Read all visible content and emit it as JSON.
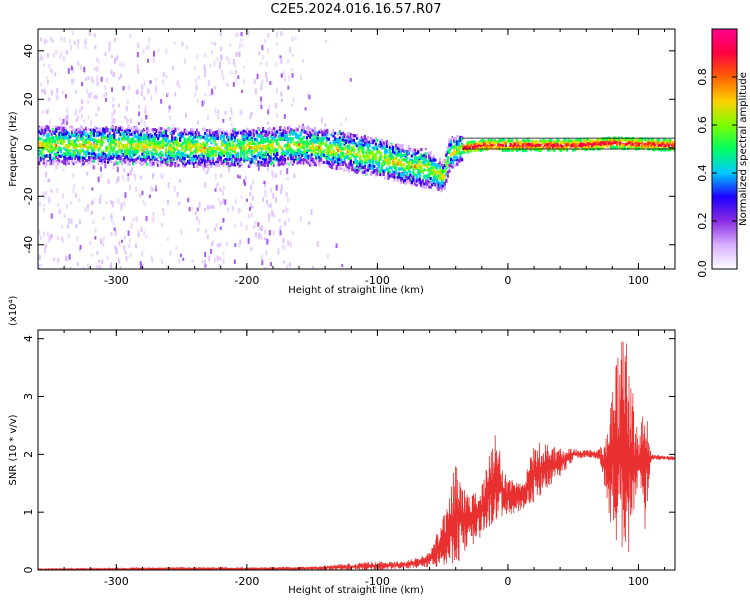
{
  "title": "C2E5.2024.016.16.57.R07",
  "chart_data": [
    {
      "type": "heatmap",
      "xlabel": "Height of straight line (km)",
      "ylabel": "Frequency (Hz)",
      "xlim": [
        -360,
        128
      ],
      "ylim": [
        -50,
        49
      ],
      "xticks": [
        -300,
        -200,
        -100,
        0,
        100
      ],
      "yticks": [
        -40,
        -20,
        0,
        20,
        40
      ],
      "colorbar": {
        "label": "Normalized spectral amplitude",
        "range": [
          0,
          1
        ],
        "ticks": [
          0.0,
          0.2,
          0.4,
          0.6,
          0.8
        ],
        "colors": [
          "#ffffff",
          "#d8b0ff",
          "#8a2be2",
          "#1e00ff",
          "#00c8ff",
          "#00ff60",
          "#7dff00",
          "#ffd000",
          "#ff6000",
          "#ff0040",
          "#ff0090"
        ]
      },
      "band_centerline": [
        {
          "x": -340,
          "y": 1
        },
        {
          "x": -300,
          "y": 1
        },
        {
          "x": -250,
          "y": 0
        },
        {
          "x": -200,
          "y": 0
        },
        {
          "x": -160,
          "y": 1
        },
        {
          "x": -140,
          "y": 0
        },
        {
          "x": -120,
          "y": -2
        },
        {
          "x": -100,
          "y": -4
        },
        {
          "x": -80,
          "y": -7
        },
        {
          "x": -60,
          "y": -9
        },
        {
          "x": -50,
          "y": -12
        },
        {
          "x": -45,
          "y": -2
        },
        {
          "x": -35,
          "y": 0
        },
        {
          "x": -20,
          "y": 1
        },
        {
          "x": 0,
          "y": 1
        },
        {
          "x": 50,
          "y": 1
        },
        {
          "x": 80,
          "y": 2
        },
        {
          "x": 128,
          "y": 1
        }
      ]
    },
    {
      "type": "line",
      "xlabel": "Height of straight line (km)",
      "ylabel": "SNR (10 * v/v)",
      "y_multiplier": "(x10⁴)",
      "xlim": [
        -360,
        128
      ],
      "ylim": [
        0,
        4.15
      ],
      "xticks": [
        -300,
        -200,
        -100,
        0,
        100
      ],
      "yticks": [
        0,
        1,
        2,
        3,
        4
      ],
      "series": [
        {
          "color": "#e83030",
          "envelope": [
            {
              "x": -360,
              "lo": 0.0,
              "hi": 0.02
            },
            {
              "x": -300,
              "lo": 0.0,
              "hi": 0.03
            },
            {
              "x": -250,
              "lo": 0.0,
              "hi": 0.05
            },
            {
              "x": -200,
              "lo": 0.0,
              "hi": 0.04
            },
            {
              "x": -150,
              "lo": 0.0,
              "hi": 0.06
            },
            {
              "x": -120,
              "lo": 0.0,
              "hi": 0.12
            },
            {
              "x": -100,
              "lo": 0.0,
              "hi": 0.15
            },
            {
              "x": -80,
              "lo": 0.02,
              "hi": 0.15
            },
            {
              "x": -60,
              "lo": 0.05,
              "hi": 0.3
            },
            {
              "x": -50,
              "lo": 0.05,
              "hi": 0.9
            },
            {
              "x": -40,
              "lo": 0.1,
              "hi": 1.85
            },
            {
              "x": -30,
              "lo": 0.3,
              "hi": 1.3
            },
            {
              "x": -20,
              "lo": 0.6,
              "hi": 1.5
            },
            {
              "x": -10,
              "lo": 0.8,
              "hi": 2.35
            },
            {
              "x": 0,
              "lo": 0.95,
              "hi": 1.6
            },
            {
              "x": 10,
              "lo": 1.0,
              "hi": 1.5
            },
            {
              "x": 20,
              "lo": 1.15,
              "hi": 2.2
            },
            {
              "x": 30,
              "lo": 1.4,
              "hi": 2.2
            },
            {
              "x": 40,
              "lo": 1.6,
              "hi": 2.1
            },
            {
              "x": 50,
              "lo": 1.9,
              "hi": 2.1
            },
            {
              "x": 60,
              "lo": 1.95,
              "hi": 2.07
            },
            {
              "x": 70,
              "lo": 1.9,
              "hi": 2.1
            },
            {
              "x": 75,
              "lo": 1.3,
              "hi": 2.3
            },
            {
              "x": 80,
              "lo": 0.6,
              "hi": 3.3
            },
            {
              "x": 85,
              "lo": 0.2,
              "hi": 3.9
            },
            {
              "x": 90,
              "lo": 0.1,
              "hi": 4.1
            },
            {
              "x": 95,
              "lo": 0.3,
              "hi": 3.3
            },
            {
              "x": 100,
              "lo": 1.6,
              "hi": 2.2
            },
            {
              "x": 105,
              "lo": 0.7,
              "hi": 3.0
            },
            {
              "x": 110,
              "lo": 1.9,
              "hi": 2.0
            },
            {
              "x": 128,
              "lo": 1.9,
              "hi": 1.97
            }
          ]
        }
      ]
    }
  ]
}
